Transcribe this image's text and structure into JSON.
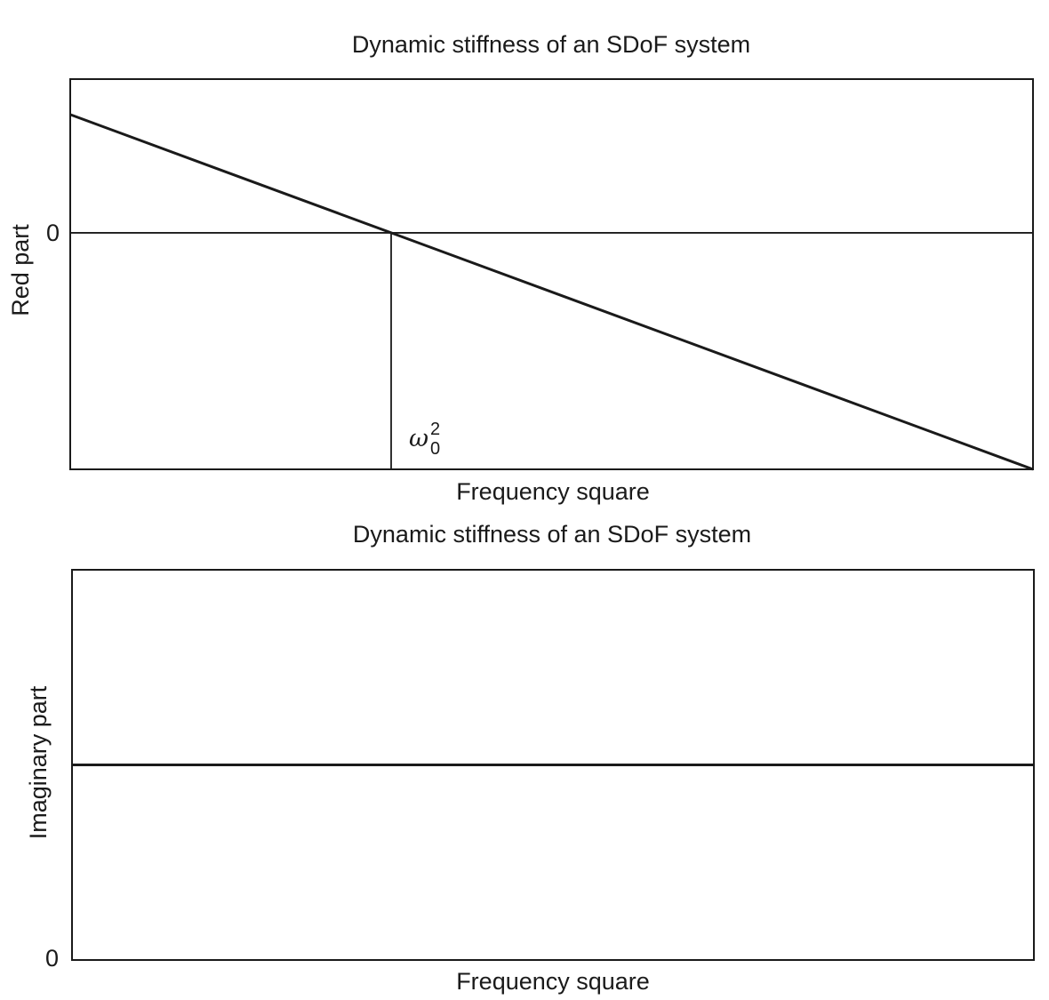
{
  "chart_data": [
    {
      "type": "line",
      "title": "Dynamic stiffness of an SDoF system",
      "xlabel": "Frequency square",
      "ylabel": "Red part",
      "y_ticks": [
        "0"
      ],
      "xlim": [
        0,
        3
      ],
      "ylim": [
        -2.0,
        1.3
      ],
      "grid": false,
      "annotations": [
        {
          "text_base": "ω",
          "text_sub": "0",
          "text_sup": "2",
          "x": 1.0
        }
      ],
      "reference_lines": [
        {
          "orientation": "horizontal",
          "y": 0
        },
        {
          "orientation": "vertical",
          "x": 1.0
        }
      ],
      "series": [
        {
          "x": [
            0,
            1,
            3
          ],
          "y": [
            1,
            0,
            -2
          ]
        }
      ]
    },
    {
      "type": "line",
      "title": "Dynamic stiffness of an SDoF system",
      "xlabel": "Frequency square",
      "ylabel": "Imaginary part",
      "y_ticks": [
        "0"
      ],
      "xlim": [
        0,
        3
      ],
      "ylim": [
        0,
        2
      ],
      "grid": false,
      "series": [
        {
          "x": [
            0,
            3
          ],
          "y": [
            1,
            1
          ]
        }
      ]
    }
  ]
}
